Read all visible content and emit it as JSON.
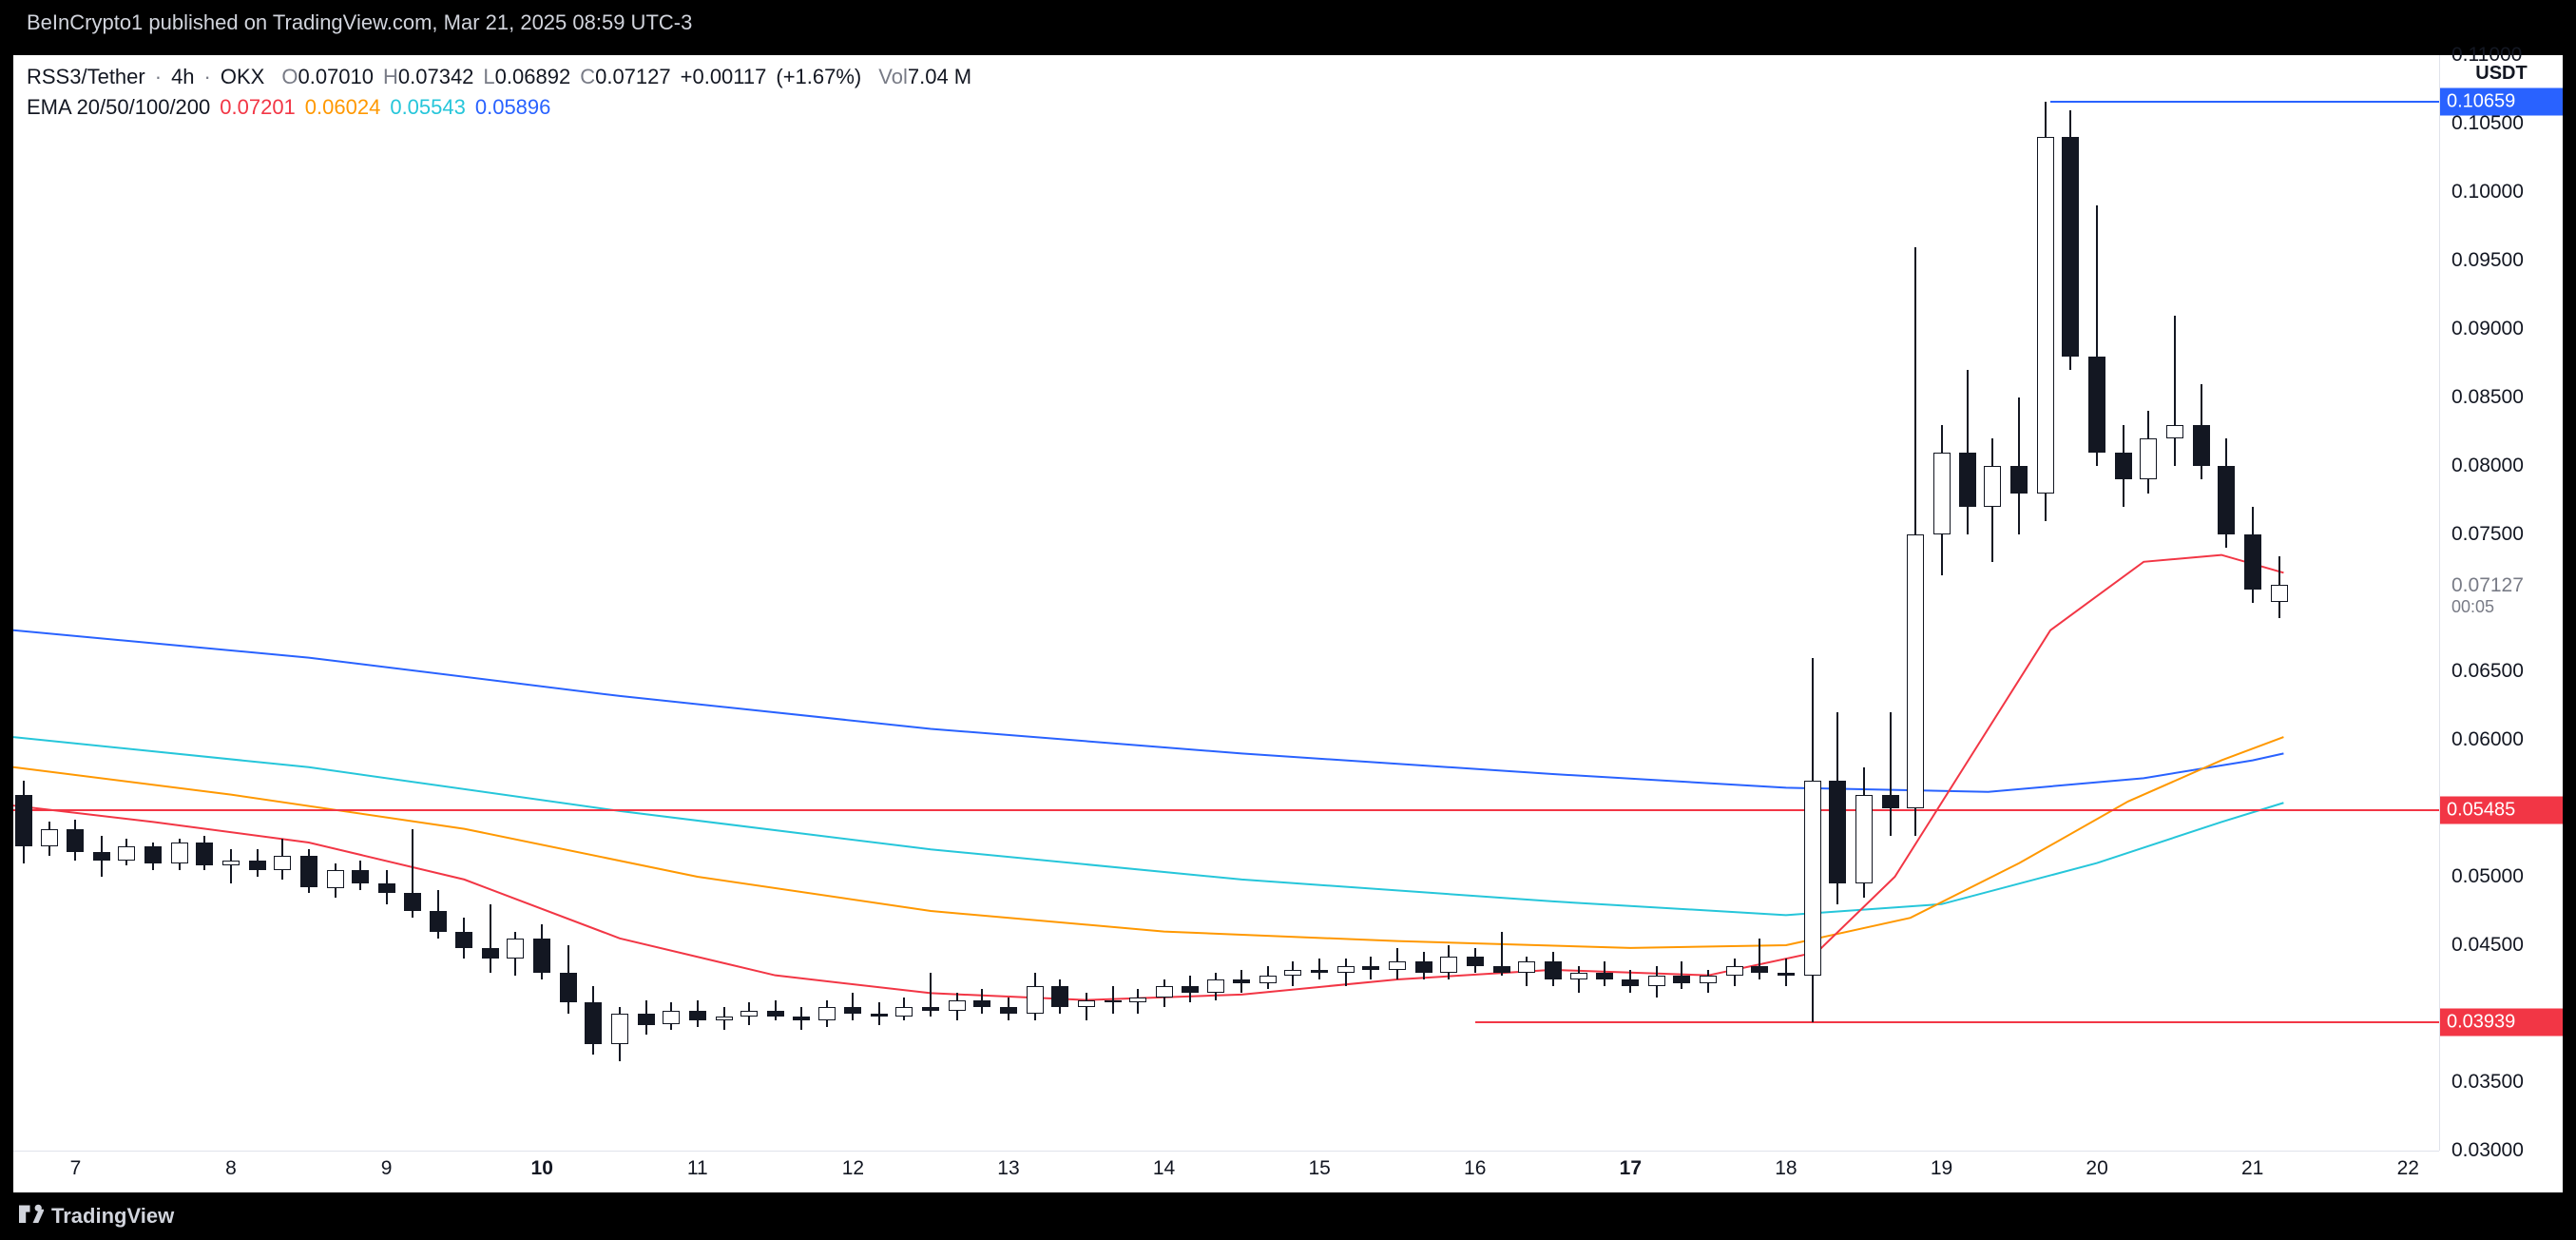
{
  "header": {
    "attribution": "BeInCrypto1 published on TradingView.com, Mar 21, 2025 08:59 UTC-3"
  },
  "footer": {
    "brand": "TradingView"
  },
  "symbol_info": {
    "pair": "RSS3/Tether",
    "interval": "4h",
    "exchange": "OKX",
    "olabel": "O",
    "open": "0.07010",
    "hlabel": "H",
    "high": "0.07342",
    "llabel": "L",
    "low": "0.06892",
    "clabel": "C",
    "close": "0.07127",
    "change": "+0.00117",
    "change_pct": "(+1.67%)",
    "vol_label": "Vol",
    "volume": "7.04 M",
    "value_color": "#131722"
  },
  "indicator_info": {
    "name": "EMA 20/50/100/200",
    "ema20": {
      "value": "0.07201",
      "color": "#f23645"
    },
    "ema50": {
      "value": "0.06024",
      "color": "#ff9800"
    },
    "ema100": {
      "value": "0.05543",
      "color": "#26c6da"
    },
    "ema200": {
      "value": "0.05896",
      "color": "#2962ff"
    }
  },
  "axes": {
    "y_header": "USDT",
    "ymin": 0.03,
    "ymax": 0.11,
    "y_ticks": [
      0.03,
      0.035,
      0.03939,
      0.045,
      0.05,
      0.05485,
      0.06,
      0.065,
      0.07127,
      0.075,
      0.08,
      0.085,
      0.09,
      0.095,
      0.1,
      0.105,
      0.10659,
      0.11
    ],
    "y_tick_labels": [
      "0.03000",
      "0.03500",
      "",
      "0.04500",
      "0.05000",
      "",
      "0.06000",
      "0.06500",
      "",
      "0.07500",
      "0.08000",
      "0.08500",
      "0.09000",
      "0.09500",
      "0.10000",
      "0.10500",
      "",
      "0.11000"
    ],
    "x_ticks": [
      7,
      8,
      9,
      10,
      11,
      12,
      13,
      14,
      15,
      16,
      17,
      18,
      19,
      20,
      21,
      22
    ],
    "x_bold": [
      10,
      17
    ],
    "countdown": "00:05",
    "current_price_label": "0.07127"
  },
  "price_tags": [
    {
      "value": 0.10659,
      "label": "0.10659",
      "bg": "#2962ff"
    },
    {
      "value": 0.05485,
      "label": "0.05485",
      "bg": "#f23645"
    },
    {
      "value": 0.03939,
      "label": "0.03939",
      "bg": "#f23645"
    }
  ],
  "hlines": [
    {
      "y": 0.10659,
      "color": "#2962ff",
      "x_start": 19.7,
      "x_end": 22.2
    },
    {
      "y": 0.05485,
      "color": "#f23645",
      "x_start": 6.6,
      "x_end": 22.2
    },
    {
      "y": 0.03939,
      "color": "#f23645",
      "x_start": 16.0,
      "x_end": 22.2
    }
  ],
  "chart": {
    "type": "candlestick",
    "background_color": "#ffffff",
    "up_fill": "#ffffff",
    "down_fill": "#131722",
    "wick_color": "#131722",
    "border_color": "#131722",
    "candle_width": 18,
    "xmin": 6.6,
    "xmax": 22.2
  },
  "ema_lines": {
    "ema20": {
      "color": "#f23645",
      "width": 2,
      "points": [
        [
          6.6,
          0.0552
        ],
        [
          7.5,
          0.054
        ],
        [
          8.5,
          0.0525
        ],
        [
          9.5,
          0.0498
        ],
        [
          10.5,
          0.0455
        ],
        [
          11.5,
          0.0428
        ],
        [
          12.5,
          0.0415
        ],
        [
          13.5,
          0.041
        ],
        [
          14.5,
          0.0414
        ],
        [
          15.5,
          0.0425
        ],
        [
          16.5,
          0.0432
        ],
        [
          17.5,
          0.0428
        ],
        [
          18.2,
          0.0445
        ],
        [
          18.7,
          0.05
        ],
        [
          19.2,
          0.059
        ],
        [
          19.7,
          0.068
        ],
        [
          20.3,
          0.073
        ],
        [
          20.8,
          0.0735
        ],
        [
          21.2,
          0.0722
        ]
      ]
    },
    "ema50": {
      "color": "#ff9800",
      "width": 2,
      "points": [
        [
          6.6,
          0.058
        ],
        [
          8.0,
          0.056
        ],
        [
          9.5,
          0.0535
        ],
        [
          11.0,
          0.05
        ],
        [
          12.5,
          0.0475
        ],
        [
          14.0,
          0.046
        ],
        [
          15.5,
          0.0453
        ],
        [
          17.0,
          0.0448
        ],
        [
          18.0,
          0.045
        ],
        [
          18.8,
          0.047
        ],
        [
          19.5,
          0.051
        ],
        [
          20.2,
          0.0555
        ],
        [
          20.8,
          0.0585
        ],
        [
          21.2,
          0.0602
        ]
      ]
    },
    "ema100": {
      "color": "#26c6da",
      "width": 2,
      "points": [
        [
          6.6,
          0.0602
        ],
        [
          8.5,
          0.058
        ],
        [
          10.5,
          0.0548
        ],
        [
          12.5,
          0.052
        ],
        [
          14.5,
          0.0498
        ],
        [
          16.5,
          0.0482
        ],
        [
          18.0,
          0.0472
        ],
        [
          19.0,
          0.048
        ],
        [
          20.0,
          0.051
        ],
        [
          20.8,
          0.054
        ],
        [
          21.2,
          0.0554
        ]
      ]
    },
    "ema200": {
      "color": "#2962ff",
      "width": 2,
      "points": [
        [
          6.6,
          0.068
        ],
        [
          8.5,
          0.066
        ],
        [
          10.5,
          0.0632
        ],
        [
          12.5,
          0.0608
        ],
        [
          14.5,
          0.059
        ],
        [
          16.5,
          0.0575
        ],
        [
          18.0,
          0.0565
        ],
        [
          19.3,
          0.0562
        ],
        [
          20.3,
          0.0572
        ],
        [
          21.0,
          0.0585
        ],
        [
          21.2,
          0.059
        ]
      ]
    }
  },
  "candles": [
    {
      "x": 6.67,
      "o": 0.056,
      "h": 0.057,
      "l": 0.051,
      "c": 0.0522
    },
    {
      "x": 6.83,
      "o": 0.0522,
      "h": 0.054,
      "l": 0.0515,
      "c": 0.0535
    },
    {
      "x": 7.0,
      "o": 0.0535,
      "h": 0.0542,
      "l": 0.0512,
      "c": 0.0518
    },
    {
      "x": 7.17,
      "o": 0.0518,
      "h": 0.053,
      "l": 0.05,
      "c": 0.0512
    },
    {
      "x": 7.33,
      "o": 0.0512,
      "h": 0.0528,
      "l": 0.0508,
      "c": 0.0522
    },
    {
      "x": 7.5,
      "o": 0.0522,
      "h": 0.0525,
      "l": 0.0505,
      "c": 0.051
    },
    {
      "x": 7.67,
      "o": 0.051,
      "h": 0.0528,
      "l": 0.0505,
      "c": 0.0525
    },
    {
      "x": 7.83,
      "o": 0.0525,
      "h": 0.053,
      "l": 0.0505,
      "c": 0.0508
    },
    {
      "x": 8.0,
      "o": 0.0508,
      "h": 0.052,
      "l": 0.0495,
      "c": 0.0512
    },
    {
      "x": 8.17,
      "o": 0.0512,
      "h": 0.052,
      "l": 0.05,
      "c": 0.0505
    },
    {
      "x": 8.33,
      "o": 0.0505,
      "h": 0.0528,
      "l": 0.0498,
      "c": 0.0515
    },
    {
      "x": 8.5,
      "o": 0.0515,
      "h": 0.052,
      "l": 0.0488,
      "c": 0.0492
    },
    {
      "x": 8.67,
      "o": 0.0492,
      "h": 0.051,
      "l": 0.0485,
      "c": 0.0505
    },
    {
      "x": 8.83,
      "o": 0.0505,
      "h": 0.0512,
      "l": 0.049,
      "c": 0.0495
    },
    {
      "x": 9.0,
      "o": 0.0495,
      "h": 0.0505,
      "l": 0.048,
      "c": 0.0488
    },
    {
      "x": 9.17,
      "o": 0.0488,
      "h": 0.0535,
      "l": 0.047,
      "c": 0.0475
    },
    {
      "x": 9.33,
      "o": 0.0475,
      "h": 0.049,
      "l": 0.0455,
      "c": 0.046
    },
    {
      "x": 9.5,
      "o": 0.046,
      "h": 0.047,
      "l": 0.044,
      "c": 0.0448
    },
    {
      "x": 9.67,
      "o": 0.0448,
      "h": 0.048,
      "l": 0.043,
      "c": 0.044
    },
    {
      "x": 9.83,
      "o": 0.044,
      "h": 0.046,
      "l": 0.0428,
      "c": 0.0455
    },
    {
      "x": 10.0,
      "o": 0.0455,
      "h": 0.0465,
      "l": 0.0425,
      "c": 0.043
    },
    {
      "x": 10.17,
      "o": 0.043,
      "h": 0.045,
      "l": 0.04,
      "c": 0.0408
    },
    {
      "x": 10.33,
      "o": 0.0408,
      "h": 0.042,
      "l": 0.037,
      "c": 0.0378
    },
    {
      "x": 10.5,
      "o": 0.0378,
      "h": 0.0405,
      "l": 0.0365,
      "c": 0.04
    },
    {
      "x": 10.67,
      "o": 0.04,
      "h": 0.041,
      "l": 0.0385,
      "c": 0.0392
    },
    {
      "x": 10.83,
      "o": 0.0392,
      "h": 0.0408,
      "l": 0.0388,
      "c": 0.0402
    },
    {
      "x": 11.0,
      "o": 0.0402,
      "h": 0.041,
      "l": 0.039,
      "c": 0.0395
    },
    {
      "x": 11.17,
      "o": 0.0395,
      "h": 0.0405,
      "l": 0.0388,
      "c": 0.0398
    },
    {
      "x": 11.33,
      "o": 0.0398,
      "h": 0.0408,
      "l": 0.0392,
      "c": 0.0402
    },
    {
      "x": 11.5,
      "o": 0.0402,
      "h": 0.041,
      "l": 0.0395,
      "c": 0.0398
    },
    {
      "x": 11.67,
      "o": 0.0398,
      "h": 0.0405,
      "l": 0.0388,
      "c": 0.0395
    },
    {
      "x": 11.83,
      "o": 0.0395,
      "h": 0.041,
      "l": 0.039,
      "c": 0.0405
    },
    {
      "x": 12.0,
      "o": 0.0405,
      "h": 0.0415,
      "l": 0.0395,
      "c": 0.04
    },
    {
      "x": 12.17,
      "o": 0.04,
      "h": 0.0408,
      "l": 0.0392,
      "c": 0.0398
    },
    {
      "x": 12.33,
      "o": 0.0398,
      "h": 0.0412,
      "l": 0.0395,
      "c": 0.0405
    },
    {
      "x": 12.5,
      "o": 0.0405,
      "h": 0.043,
      "l": 0.0398,
      "c": 0.0402
    },
    {
      "x": 12.67,
      "o": 0.0402,
      "h": 0.0415,
      "l": 0.0395,
      "c": 0.041
    },
    {
      "x": 12.83,
      "o": 0.041,
      "h": 0.0418,
      "l": 0.04,
      "c": 0.0405
    },
    {
      "x": 13.0,
      "o": 0.0405,
      "h": 0.0412,
      "l": 0.0395,
      "c": 0.04
    },
    {
      "x": 13.17,
      "o": 0.04,
      "h": 0.043,
      "l": 0.0395,
      "c": 0.042
    },
    {
      "x": 13.33,
      "o": 0.042,
      "h": 0.0425,
      "l": 0.04,
      "c": 0.0405
    },
    {
      "x": 13.5,
      "o": 0.0405,
      "h": 0.0415,
      "l": 0.0395,
      "c": 0.041
    },
    {
      "x": 13.67,
      "o": 0.041,
      "h": 0.042,
      "l": 0.04,
      "c": 0.0408
    },
    {
      "x": 13.83,
      "o": 0.0408,
      "h": 0.0418,
      "l": 0.04,
      "c": 0.0412
    },
    {
      "x": 14.0,
      "o": 0.0412,
      "h": 0.0425,
      "l": 0.0405,
      "c": 0.042
    },
    {
      "x": 14.17,
      "o": 0.042,
      "h": 0.0428,
      "l": 0.0408,
      "c": 0.0415
    },
    {
      "x": 14.33,
      "o": 0.0415,
      "h": 0.043,
      "l": 0.041,
      "c": 0.0425
    },
    {
      "x": 14.5,
      "o": 0.0425,
      "h": 0.0432,
      "l": 0.0415,
      "c": 0.0422
    },
    {
      "x": 14.67,
      "o": 0.0422,
      "h": 0.0435,
      "l": 0.0418,
      "c": 0.0428
    },
    {
      "x": 14.83,
      "o": 0.0428,
      "h": 0.0438,
      "l": 0.042,
      "c": 0.0432
    },
    {
      "x": 15.0,
      "o": 0.0432,
      "h": 0.044,
      "l": 0.0425,
      "c": 0.043
    },
    {
      "x": 15.17,
      "o": 0.043,
      "h": 0.044,
      "l": 0.042,
      "c": 0.0435
    },
    {
      "x": 15.33,
      "o": 0.0435,
      "h": 0.0442,
      "l": 0.0425,
      "c": 0.0432
    },
    {
      "x": 15.5,
      "o": 0.0432,
      "h": 0.0448,
      "l": 0.0425,
      "c": 0.0438
    },
    {
      "x": 15.67,
      "o": 0.0438,
      "h": 0.0445,
      "l": 0.0425,
      "c": 0.043
    },
    {
      "x": 15.83,
      "o": 0.043,
      "h": 0.045,
      "l": 0.0425,
      "c": 0.0442
    },
    {
      "x": 16.0,
      "o": 0.0442,
      "h": 0.0448,
      "l": 0.043,
      "c": 0.0435
    },
    {
      "x": 16.17,
      "o": 0.0435,
      "h": 0.046,
      "l": 0.0428,
      "c": 0.043
    },
    {
      "x": 16.33,
      "o": 0.043,
      "h": 0.0442,
      "l": 0.042,
      "c": 0.0438
    },
    {
      "x": 16.5,
      "o": 0.0438,
      "h": 0.0445,
      "l": 0.042,
      "c": 0.0425
    },
    {
      "x": 16.67,
      "o": 0.0425,
      "h": 0.0435,
      "l": 0.0415,
      "c": 0.043
    },
    {
      "x": 16.83,
      "o": 0.043,
      "h": 0.0438,
      "l": 0.042,
      "c": 0.0425
    },
    {
      "x": 17.0,
      "o": 0.0425,
      "h": 0.0432,
      "l": 0.0415,
      "c": 0.042
    },
    {
      "x": 17.17,
      "o": 0.042,
      "h": 0.0435,
      "l": 0.0412,
      "c": 0.0428
    },
    {
      "x": 17.33,
      "o": 0.0428,
      "h": 0.0438,
      "l": 0.0418,
      "c": 0.0422
    },
    {
      "x": 17.5,
      "o": 0.0422,
      "h": 0.0432,
      "l": 0.0415,
      "c": 0.0428
    },
    {
      "x": 17.67,
      "o": 0.0428,
      "h": 0.044,
      "l": 0.042,
      "c": 0.0435
    },
    {
      "x": 17.83,
      "o": 0.0435,
      "h": 0.0455,
      "l": 0.0425,
      "c": 0.043
    },
    {
      "x": 18.0,
      "o": 0.043,
      "h": 0.044,
      "l": 0.042,
      "c": 0.0428
    },
    {
      "x": 18.17,
      "o": 0.0428,
      "h": 0.066,
      "l": 0.0394,
      "c": 0.057
    },
    {
      "x": 18.33,
      "o": 0.057,
      "h": 0.062,
      "l": 0.048,
      "c": 0.0495
    },
    {
      "x": 18.5,
      "o": 0.0495,
      "h": 0.058,
      "l": 0.0485,
      "c": 0.056
    },
    {
      "x": 18.67,
      "o": 0.056,
      "h": 0.062,
      "l": 0.053,
      "c": 0.055
    },
    {
      "x": 18.83,
      "o": 0.055,
      "h": 0.096,
      "l": 0.053,
      "c": 0.075
    },
    {
      "x": 19.0,
      "o": 0.075,
      "h": 0.083,
      "l": 0.072,
      "c": 0.081
    },
    {
      "x": 19.17,
      "o": 0.081,
      "h": 0.087,
      "l": 0.075,
      "c": 0.077
    },
    {
      "x": 19.33,
      "o": 0.077,
      "h": 0.082,
      "l": 0.073,
      "c": 0.08
    },
    {
      "x": 19.5,
      "o": 0.08,
      "h": 0.085,
      "l": 0.075,
      "c": 0.078
    },
    {
      "x": 19.67,
      "o": 0.078,
      "h": 0.1066,
      "l": 0.076,
      "c": 0.104
    },
    {
      "x": 19.83,
      "o": 0.104,
      "h": 0.106,
      "l": 0.087,
      "c": 0.088
    },
    {
      "x": 20.0,
      "o": 0.088,
      "h": 0.099,
      "l": 0.08,
      "c": 0.081
    },
    {
      "x": 20.17,
      "o": 0.081,
      "h": 0.083,
      "l": 0.077,
      "c": 0.079
    },
    {
      "x": 20.33,
      "o": 0.079,
      "h": 0.084,
      "l": 0.078,
      "c": 0.082
    },
    {
      "x": 20.5,
      "o": 0.082,
      "h": 0.091,
      "l": 0.08,
      "c": 0.083
    },
    {
      "x": 20.67,
      "o": 0.083,
      "h": 0.086,
      "l": 0.079,
      "c": 0.08
    },
    {
      "x": 20.83,
      "o": 0.08,
      "h": 0.082,
      "l": 0.074,
      "c": 0.075
    },
    {
      "x": 21.0,
      "o": 0.075,
      "h": 0.077,
      "l": 0.07,
      "c": 0.071
    },
    {
      "x": 21.17,
      "o": 0.0701,
      "h": 0.0734,
      "l": 0.0689,
      "c": 0.0713
    }
  ]
}
